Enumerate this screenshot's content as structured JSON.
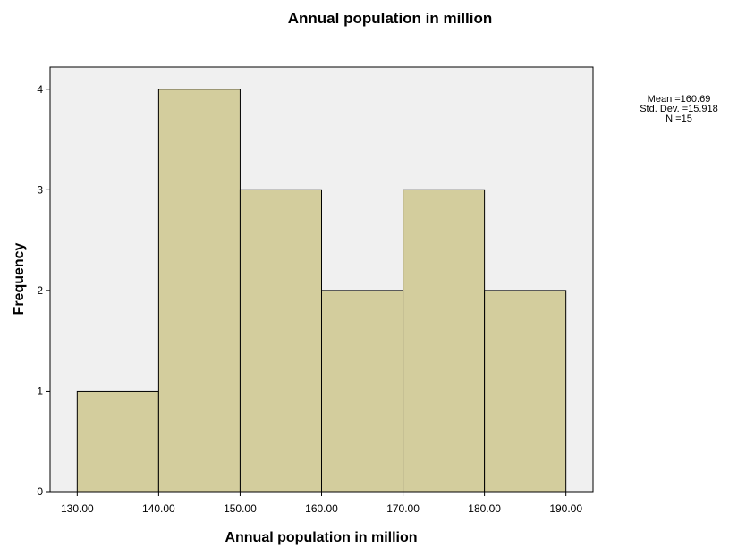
{
  "chart_data": {
    "type": "bar",
    "title": "Annual population in million",
    "xlabel": "Annual population in million",
    "ylabel": "Frequency",
    "bins": [
      {
        "from": 130,
        "to": 140,
        "count": 1
      },
      {
        "from": 140,
        "to": 150,
        "count": 4
      },
      {
        "from": 150,
        "to": 160,
        "count": 3
      },
      {
        "from": 160,
        "to": 170,
        "count": 2
      },
      {
        "from": 170,
        "to": 180,
        "count": 3
      },
      {
        "from": 180,
        "to": 190,
        "count": 2
      }
    ],
    "x_ticks": [
      "130.00",
      "140.00",
      "150.00",
      "160.00",
      "170.00",
      "180.00",
      "190.00"
    ],
    "x_tick_values": [
      130,
      140,
      150,
      160,
      170,
      180,
      190
    ],
    "y_ticks": [
      0,
      1,
      2,
      3,
      4
    ],
    "xlim": [
      126.67,
      193.33
    ],
    "ylim": [
      0,
      4.22
    ],
    "grid": false,
    "legend": "none",
    "stats": [
      "Mean =160.69",
      "Std. Dev. =15.918",
      "N =15"
    ],
    "colors": {
      "bar_fill": "#d3cd9d",
      "bar_stroke": "#000000",
      "plot_background": "#f0f0f0",
      "page_background": "#ffffff"
    }
  }
}
